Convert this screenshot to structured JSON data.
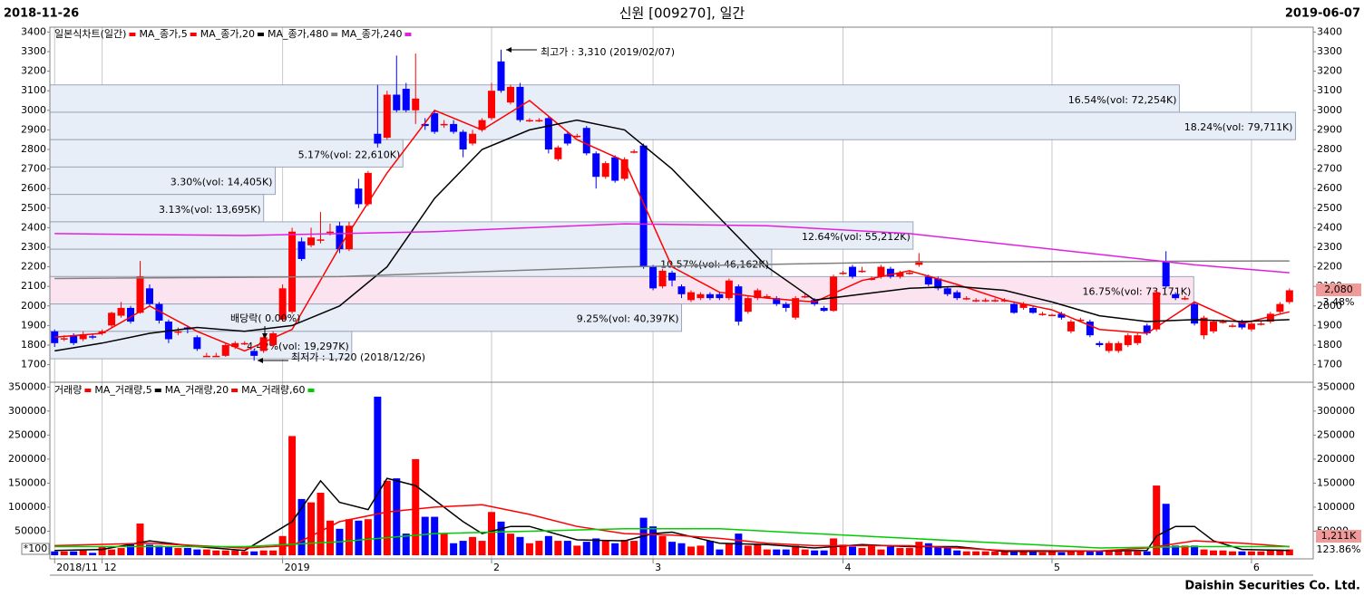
{
  "header": {
    "start": "2018-11-26",
    "title": "신원 [009270], 일간",
    "end": "2019-06-07"
  },
  "footer": "Daishin Securities Co. Ltd.",
  "chart_data": [
    {
      "type": "candlestick",
      "legend_title": "일본식차트(일간)",
      "legend_color": "#ff0000",
      "up_color": "#ff0000",
      "down_color": "#0000ff",
      "open": [
        1870,
        1830,
        1850,
        1830,
        1845,
        1860,
        1900,
        1950,
        1990,
        1965,
        2090,
        2010,
        1920,
        1870,
        1890,
        1840,
        1745,
        1745,
        1745,
        1790,
        1810,
        1770,
        1770,
        1800,
        1930,
        1970,
        2330,
        2310,
        2340,
        2380,
        2410,
        2290,
        2600,
        2520,
        2880,
        2860,
        3080,
        3110,
        3000,
        2930,
        2985,
        2930,
        2930,
        2890,
        2830,
        2900,
        2960,
        3250,
        3040,
        3120,
        2950,
        2950,
        2960,
        2750,
        2880,
        2870,
        2910,
        2780,
        2660,
        2760,
        2650,
        2790,
        2820,
        2200,
        2100,
        2170,
        2100,
        2030,
        2040,
        2060,
        2060,
        2040,
        2100,
        1970,
        2040,
        2050,
        2040,
        2010,
        1940,
        2050,
        2030,
        1990,
        1975,
        2170,
        2200,
        2180,
        2140,
        2150,
        2190,
        2150,
        2170,
        2210,
        2150,
        2140,
        2090,
        2070,
        2040,
        2030,
        2030,
        2030,
        2030,
        2010,
        1990,
        1990,
        1960,
        1955,
        1960,
        1870,
        1930,
        1920,
        1810,
        1770,
        1770,
        1800,
        1810,
        1900,
        1880,
        2230,
        2060,
        2040,
        2010,
        1850,
        1870,
        1920,
        1900,
        1920,
        1880,
        1910,
        1920,
        1970,
        2020
      ],
      "high": [
        1880,
        1850,
        1860,
        1870,
        1860,
        1880,
        1970,
        2020,
        2000,
        2230,
        2110,
        2020,
        1930,
        1890,
        1900,
        1850,
        1760,
        1760,
        1810,
        1820,
        1820,
        1780,
        1850,
        1870,
        2110,
        2400,
        2350,
        2400,
        2480,
        2420,
        2430,
        2430,
        2650,
        2690,
        3130,
        3100,
        3280,
        3140,
        3290,
        2960,
        3000,
        2950,
        2950,
        2900,
        2900,
        2960,
        3140,
        3310,
        3130,
        3140,
        2960,
        2960,
        2970,
        2820,
        2890,
        2880,
        2920,
        2790,
        2740,
        2770,
        2760,
        2800,
        2830,
        2210,
        2190,
        2180,
        2110,
        2080,
        2070,
        2070,
        2070,
        2140,
        2110,
        2050,
        2090,
        2060,
        2050,
        2020,
        2050,
        2060,
        2040,
        2000,
        2160,
        2180,
        2210,
        2200,
        2150,
        2210,
        2200,
        2180,
        2180,
        2270,
        2160,
        2150,
        2100,
        2080,
        2050,
        2040,
        2040,
        2040,
        2040,
        2020,
        2020,
        2000,
        1970,
        1960,
        1970,
        1930,
        1940,
        1930,
        1820,
        1820,
        1820,
        1860,
        1860,
        1910,
        2080,
        2280,
        2070,
        2050,
        2020,
        1950,
        1930,
        1930,
        1910,
        1930,
        1920,
        1920,
        1970,
        2020,
        2090
      ],
      "low": [
        1790,
        1820,
        1800,
        1820,
        1830,
        1850,
        1890,
        1940,
        1910,
        1960,
        2000,
        1910,
        1810,
        1850,
        1860,
        1770,
        1740,
        1740,
        1740,
        1780,
        1800,
        1720,
        1760,
        1790,
        1920,
        1960,
        2230,
        2300,
        2320,
        2360,
        2270,
        2280,
        2500,
        2510,
        2810,
        2850,
        2990,
        2990,
        2930,
        2900,
        2880,
        2910,
        2880,
        2760,
        2820,
        2890,
        2950,
        3090,
        3030,
        2940,
        2940,
        2940,
        2780,
        2740,
        2820,
        2860,
        2770,
        2600,
        2650,
        2630,
        2640,
        2780,
        2190,
        2080,
        2090,
        2100,
        2040,
        2020,
        2030,
        2030,
        2030,
        2030,
        1900,
        1960,
        2030,
        2040,
        2000,
        1970,
        1930,
        2040,
        2000,
        1970,
        1970,
        2160,
        2140,
        2170,
        2130,
        2140,
        2140,
        2140,
        2160,
        2200,
        2100,
        2080,
        2050,
        2030,
        2030,
        2020,
        2020,
        2020,
        2020,
        1960,
        1980,
        1960,
        1950,
        1950,
        1930,
        1860,
        1920,
        1840,
        1790,
        1760,
        1760,
        1790,
        1800,
        1850,
        1870,
        2090,
        2030,
        2030,
        1900,
        1830,
        1860,
        1910,
        1890,
        1880,
        1870,
        1900,
        1910,
        1960,
        2010
      ],
      "close": [
        1810,
        1835,
        1810,
        1855,
        1840,
        1870,
        1965,
        1990,
        1920,
        2150,
        2010,
        1925,
        1830,
        1870,
        1880,
        1780,
        1745,
        1745,
        1800,
        1810,
        1810,
        1745,
        1840,
        1860,
        2090,
        2380,
        2240,
        2350,
        2340,
        2380,
        2290,
        2410,
        2520,
        2680,
        2830,
        3080,
        3000,
        3000,
        3060,
        2920,
        2890,
        2930,
        2890,
        2800,
        2880,
        2950,
        3100,
        3100,
        3120,
        2950,
        2950,
        2950,
        2800,
        2810,
        2830,
        2870,
        2780,
        2660,
        2730,
        2640,
        2750,
        2790,
        2200,
        2090,
        2180,
        2130,
        2060,
        2070,
        2060,
        2040,
        2040,
        2130,
        1920,
        2040,
        2080,
        2050,
        2010,
        1990,
        2040,
        2050,
        2010,
        1975,
        2150,
        2170,
        2150,
        2180,
        2140,
        2200,
        2150,
        2170,
        2170,
        2230,
        2110,
        2090,
        2060,
        2040,
        2040,
        2030,
        2030,
        2030,
        2030,
        1965,
        2010,
        1965,
        1960,
        1955,
        1940,
        1920,
        1930,
        1850,
        1800,
        1810,
        1810,
        1850,
        1850,
        1860,
        2070,
        2100,
        2040,
        2040,
        1910,
        1940,
        1920,
        1920,
        1900,
        1890,
        1910,
        1910,
        1960,
        2010,
        2080
      ],
      "xlim": [
        -0.5,
        132.5
      ],
      "xticks": [
        {
          "value": 0,
          "label": "2018/11"
        },
        {
          "value": 5,
          "label": "12"
        },
        {
          "value": 24,
          "label": "2019"
        },
        {
          "value": 46,
          "label": "2"
        },
        {
          "value": 63,
          "label": "3"
        },
        {
          "value": 83,
          "label": "4"
        },
        {
          "value": 105,
          "label": "5"
        },
        {
          "value": 126,
          "label": "6"
        }
      ],
      "xgrid": true,
      "ylim": [
        1610,
        3425
      ],
      "yticks": [
        1700,
        1800,
        1900,
        2000,
        2100,
        2200,
        2300,
        2400,
        2500,
        2600,
        2700,
        2800,
        2900,
        3000,
        3100,
        3200,
        3300,
        3400
      ],
      "series": [
        {
          "name": "MA_종가,5",
          "color": "#ff0000",
          "x": [
            0,
            5,
            10,
            15,
            20,
            25,
            30,
            35,
            40,
            45,
            50,
            55,
            60,
            65,
            70,
            75,
            80,
            85,
            90,
            95,
            100,
            105,
            110,
            115,
            120,
            125,
            130
          ],
          "values": [
            1840,
            1860,
            2000,
            1870,
            1770,
            1880,
            2300,
            2680,
            3000,
            2900,
            3050,
            2850,
            2740,
            2200,
            2070,
            2040,
            2020,
            2130,
            2180,
            2110,
            2030,
            1980,
            1880,
            1860,
            2020,
            1910,
            1970
          ]
        },
        {
          "name": "MA_종가,20",
          "color": "#000000",
          "x": [
            0,
            5,
            10,
            15,
            20,
            25,
            30,
            35,
            40,
            45,
            50,
            55,
            60,
            65,
            70,
            75,
            80,
            85,
            90,
            95,
            100,
            105,
            110,
            115,
            120,
            125,
            130
          ],
          "values": [
            1770,
            1810,
            1860,
            1890,
            1870,
            1900,
            2000,
            2200,
            2550,
            2800,
            2900,
            2950,
            2900,
            2700,
            2450,
            2200,
            2030,
            2060,
            2090,
            2100,
            2080,
            2020,
            1950,
            1920,
            1930,
            1920,
            1930
          ]
        },
        {
          "name": "MA_종가,480",
          "color": "#808080",
          "x": [
            0,
            30,
            60,
            90,
            130
          ],
          "values": [
            2140,
            2150,
            2200,
            2225,
            2230
          ]
        },
        {
          "name": "MA_종가,240",
          "color": "#e020e0",
          "x": [
            0,
            20,
            40,
            60,
            75,
            90,
            105,
            120,
            130
          ],
          "values": [
            2370,
            2360,
            2380,
            2420,
            2410,
            2370,
            2290,
            2210,
            2170
          ]
        }
      ],
      "volume_profile": [
        {
          "low": 2990,
          "high": 3130,
          "pct": 16.54,
          "label": "16.54%(vol: 72,254K)",
          "color": "#e8eef8"
        },
        {
          "low": 2850,
          "high": 2990,
          "pct": 18.24,
          "label": "18.24%(vol: 79,711K)",
          "color": "#e8eef8"
        },
        {
          "low": 2710,
          "high": 2850,
          "pct": 5.17,
          "label": "5.17%(vol: 22,610K)",
          "color": "#e8eef8"
        },
        {
          "low": 2570,
          "high": 2710,
          "pct": 3.3,
          "label": "3.30%(vol: 14,405K)",
          "color": "#e8eef8"
        },
        {
          "low": 2430,
          "high": 2570,
          "pct": 3.13,
          "label": "3.13%(vol: 13,695K)",
          "color": "#e8eef8"
        },
        {
          "low": 2290,
          "high": 2430,
          "pct": 12.64,
          "label": "12.64%(vol: 55,212K)",
          "color": "#e8eef8"
        },
        {
          "low": 2150,
          "high": 2290,
          "pct": 10.57,
          "label": "10.57%(vol: 46,162K)",
          "color": "#e8eef8"
        },
        {
          "low": 2010,
          "high": 2150,
          "pct": 16.75,
          "label": "16.75%(vol: 73,171K)",
          "color": "#fbe4ef"
        },
        {
          "low": 1870,
          "high": 2010,
          "pct": 9.25,
          "label": "9.25%(vol: 40,397K)",
          "color": "#e8eef8"
        },
        {
          "low": 1730,
          "high": 1870,
          "pct": 4.42,
          "label": "4.42%(vol: 19,297K)",
          "color": "#e8eef8"
        }
      ],
      "annotations": {
        "high": "최고가 : 3,310 (2019/02/07)",
        "low": "최저가 : 1,720 (2018/12/26)",
        "ex_dividend": "배당락( 0.00%)"
      },
      "last_labels": {
        "price": "2,080",
        "change": "3.48%"
      }
    },
    {
      "type": "bar",
      "legend_title": "거래량",
      "legend_color": "#ff0000",
      "up_color": "#ff0000",
      "down_color": "#0000ff",
      "values": [
        8000,
        8000,
        8000,
        10000,
        5000,
        18000,
        12000,
        15000,
        25000,
        66000,
        22000,
        20000,
        18000,
        15000,
        15000,
        12000,
        12000,
        10000,
        10000,
        10000,
        8000,
        8000,
        10000,
        10000,
        40000,
        248000,
        117000,
        110000,
        130000,
        72000,
        55000,
        75000,
        72000,
        75000,
        330000,
        155000,
        160000,
        45000,
        200000,
        80000,
        80000,
        45000,
        25000,
        30000,
        38000,
        30000,
        90000,
        70000,
        45000,
        38000,
        25000,
        30000,
        40000,
        30000,
        30000,
        20000,
        28000,
        35000,
        30000,
        25000,
        32000,
        30000,
        78000,
        60000,
        40000,
        28000,
        25000,
        18000,
        20000,
        30000,
        12000,
        25000,
        45000,
        20000,
        22000,
        12000,
        12000,
        12000,
        20000,
        12000,
        10000,
        10000,
        35000,
        22000,
        18000,
        15000,
        20000,
        12000,
        18000,
        15000,
        15000,
        28000,
        25000,
        18000,
        15000,
        10000,
        8000,
        8000,
        8000,
        8000,
        8000,
        10000,
        8000,
        8000,
        6000,
        8000,
        6000,
        8000,
        8000,
        10000,
        10000,
        10000,
        10000,
        8000,
        8000,
        8000,
        145000,
        107000,
        20000,
        20000,
        20000,
        12000,
        10000,
        10000,
        8000,
        8000,
        8000,
        8000,
        10000,
        12000,
        12110
      ],
      "ylim": [
        0,
        360000
      ],
      "yticks": [
        50000,
        100000,
        150000,
        200000,
        250000,
        300000,
        350000
      ],
      "unit_label": "*100",
      "series": [
        {
          "name": "MA_거래량,5",
          "color": "#000000",
          "x": [
            0,
            5,
            10,
            15,
            20,
            25,
            28,
            30,
            33,
            35,
            38,
            40,
            43,
            45,
            48,
            50,
            55,
            60,
            63,
            65,
            70,
            75,
            80,
            85,
            90,
            95,
            100,
            105,
            110,
            115,
            116,
            118,
            120,
            122,
            125,
            130
          ],
          "values": [
            10000,
            12000,
            30000,
            18000,
            10000,
            70000,
            155000,
            110000,
            95000,
            160000,
            145000,
            115000,
            70000,
            45000,
            60000,
            60000,
            32000,
            30000,
            45000,
            48000,
            25000,
            22000,
            15000,
            22000,
            18000,
            18000,
            8000,
            8000,
            9000,
            10000,
            40000,
            60000,
            60000,
            30000,
            12000,
            10000
          ]
        },
        {
          "name": "MA_거래량,20",
          "color": "#ff0000",
          "x": [
            0,
            10,
            20,
            25,
            30,
            35,
            40,
            45,
            50,
            55,
            60,
            65,
            70,
            75,
            80,
            85,
            90,
            95,
            100,
            110,
            115,
            120,
            125,
            130
          ],
          "values": [
            20000,
            25000,
            15000,
            20000,
            70000,
            90000,
            100000,
            105000,
            85000,
            60000,
            45000,
            42000,
            35000,
            25000,
            20000,
            20000,
            20000,
            15000,
            10000,
            9000,
            15000,
            30000,
            25000,
            18000
          ]
        },
        {
          "name": "MA_거래량,60",
          "color": "#00cc00",
          "x": [
            0,
            20,
            30,
            40,
            50,
            60,
            70,
            80,
            90,
            100,
            110,
            120,
            130
          ],
          "values": [
            18000,
            18000,
            28000,
            45000,
            50000,
            55000,
            55000,
            45000,
            35000,
            25000,
            15000,
            18000,
            18000
          ]
        }
      ],
      "last_labels": {
        "volume": "1,211K",
        "ratio": "123.86%"
      }
    }
  ]
}
